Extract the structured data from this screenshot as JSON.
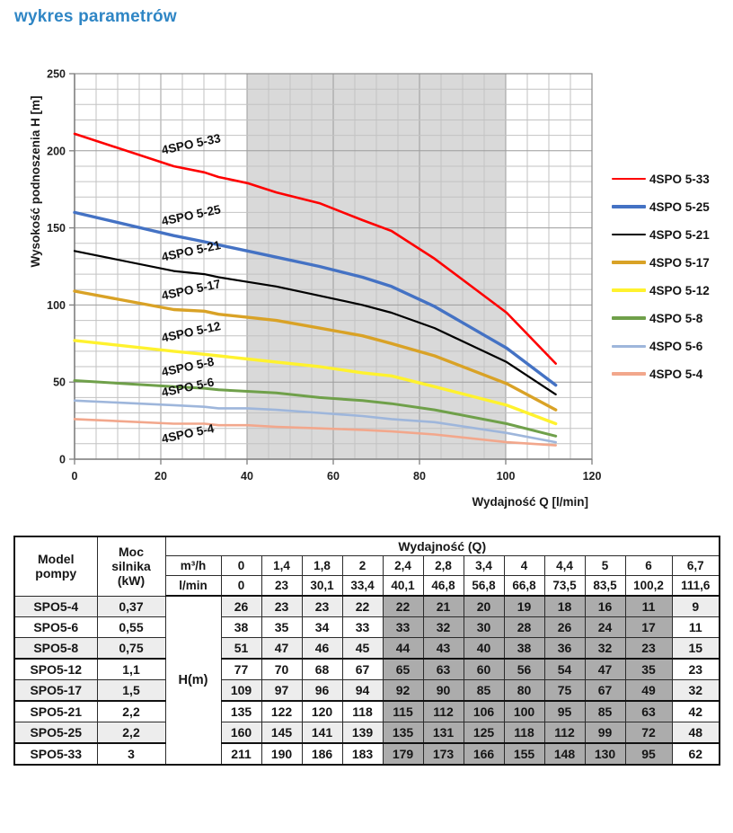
{
  "page_title": "wykres parametrów",
  "chart_data": {
    "type": "line",
    "title": "",
    "xlabel": "Wydajność Q [l/min]",
    "ylabel": "Wysokość podnoszenia H [m]",
    "xlim": [
      0,
      120
    ],
    "ylim": [
      0,
      250
    ],
    "x_ticks": [
      0,
      20,
      40,
      60,
      80,
      100,
      120
    ],
    "y_ticks": [
      0,
      50,
      100,
      150,
      200,
      250
    ],
    "grid": true,
    "legend_position": "right",
    "shaded_region_x": [
      40,
      100
    ],
    "shaded_region_color": "#D9D9D9",
    "x": [
      0,
      23,
      30.1,
      33.4,
      40.1,
      46.8,
      56.8,
      66.8,
      73.5,
      83.5,
      100.2,
      111.6
    ],
    "series": [
      {
        "name": "4SPO 5-33",
        "color": "#FE0000",
        "values": [
          211,
          190,
          186,
          183,
          179,
          173,
          166,
          155,
          148,
          130,
          95,
          62
        ]
      },
      {
        "name": "4SPO 5-25",
        "color": "#4472C4",
        "values": [
          160,
          145,
          141,
          139,
          135,
          131,
          125,
          118,
          112,
          99,
          72,
          48
        ]
      },
      {
        "name": "4SPO 5-21",
        "color": "#000000",
        "values": [
          135,
          122,
          120,
          118,
          115,
          112,
          106,
          100,
          95,
          85,
          63,
          42
        ]
      },
      {
        "name": "4SPO 5-17",
        "color": "#D9A226",
        "values": [
          109,
          97,
          96,
          94,
          92,
          90,
          85,
          80,
          75,
          67,
          49,
          32
        ]
      },
      {
        "name": "4SPO 5-12",
        "color": "#FFF22E",
        "values": [
          77,
          70,
          68,
          67,
          65,
          63,
          60,
          56,
          54,
          47,
          35,
          23
        ]
      },
      {
        "name": "4SPO 5-8",
        "color": "#6FA04A",
        "values": [
          51,
          47,
          46,
          45,
          44,
          43,
          40,
          38,
          36,
          32,
          23,
          15
        ]
      },
      {
        "name": "4SPO 5-6",
        "color": "#9EB6DB",
        "values": [
          38,
          35,
          34,
          33,
          33,
          32,
          30,
          28,
          26,
          24,
          17,
          11
        ]
      },
      {
        "name": "4SPO 5-4",
        "color": "#F2A78C",
        "values": [
          26,
          23,
          23,
          22,
          22,
          21,
          20,
          19,
          18,
          16,
          11,
          9
        ]
      }
    ]
  },
  "table": {
    "header": {
      "model": "Model pompy",
      "power": "Moc silnika (kW)",
      "flow": "Wydajność (Q)",
      "unit_m3h": "m³/h",
      "unit_lmin": "l/min",
      "h_label": "H(m)"
    },
    "m3h_values": [
      "0",
      "1,4",
      "1,8",
      "2",
      "2,4",
      "2,8",
      "3,4",
      "4",
      "4,4",
      "5",
      "6",
      "6,7"
    ],
    "lmin_values": [
      "0",
      "23",
      "30,1",
      "33,4",
      "40,1",
      "46,8",
      "56,8",
      "66,8",
      "73,5",
      "83,5",
      "100,2",
      "111,6"
    ],
    "highlight_col_range": [
      4,
      10
    ],
    "rows": [
      {
        "model": "SPO5-4",
        "power": "0,37",
        "values": [
          "26",
          "23",
          "23",
          "22",
          "22",
          "21",
          "20",
          "19",
          "18",
          "16",
          "11",
          "9"
        ]
      },
      {
        "model": "SPO5-6",
        "power": "0,55",
        "values": [
          "38",
          "35",
          "34",
          "33",
          "33",
          "32",
          "30",
          "28",
          "26",
          "24",
          "17",
          "11"
        ]
      },
      {
        "model": "SPO5-8",
        "power": "0,75",
        "values": [
          "51",
          "47",
          "46",
          "45",
          "44",
          "43",
          "40",
          "38",
          "36",
          "32",
          "23",
          "15"
        ]
      },
      {
        "model": "SPO5-12",
        "power": "1,1",
        "values": [
          "77",
          "70",
          "68",
          "67",
          "65",
          "63",
          "60",
          "56",
          "54",
          "47",
          "35",
          "23"
        ]
      },
      {
        "model": "SPO5-17",
        "power": "1,5",
        "values": [
          "109",
          "97",
          "96",
          "94",
          "92",
          "90",
          "85",
          "80",
          "75",
          "67",
          "49",
          "32"
        ]
      },
      {
        "model": "SPO5-21",
        "power": "2,2",
        "values": [
          "135",
          "122",
          "120",
          "118",
          "115",
          "112",
          "106",
          "100",
          "95",
          "85",
          "63",
          "42"
        ]
      },
      {
        "model": "SPO5-25",
        "power": "2,2",
        "values": [
          "160",
          "145",
          "141",
          "139",
          "135",
          "131",
          "125",
          "118",
          "112",
          "99",
          "72",
          "48"
        ]
      },
      {
        "model": "SPO5-33",
        "power": "3",
        "values": [
          "211",
          "190",
          "186",
          "183",
          "179",
          "173",
          "166",
          "155",
          "148",
          "130",
          "95",
          "62"
        ]
      }
    ]
  }
}
